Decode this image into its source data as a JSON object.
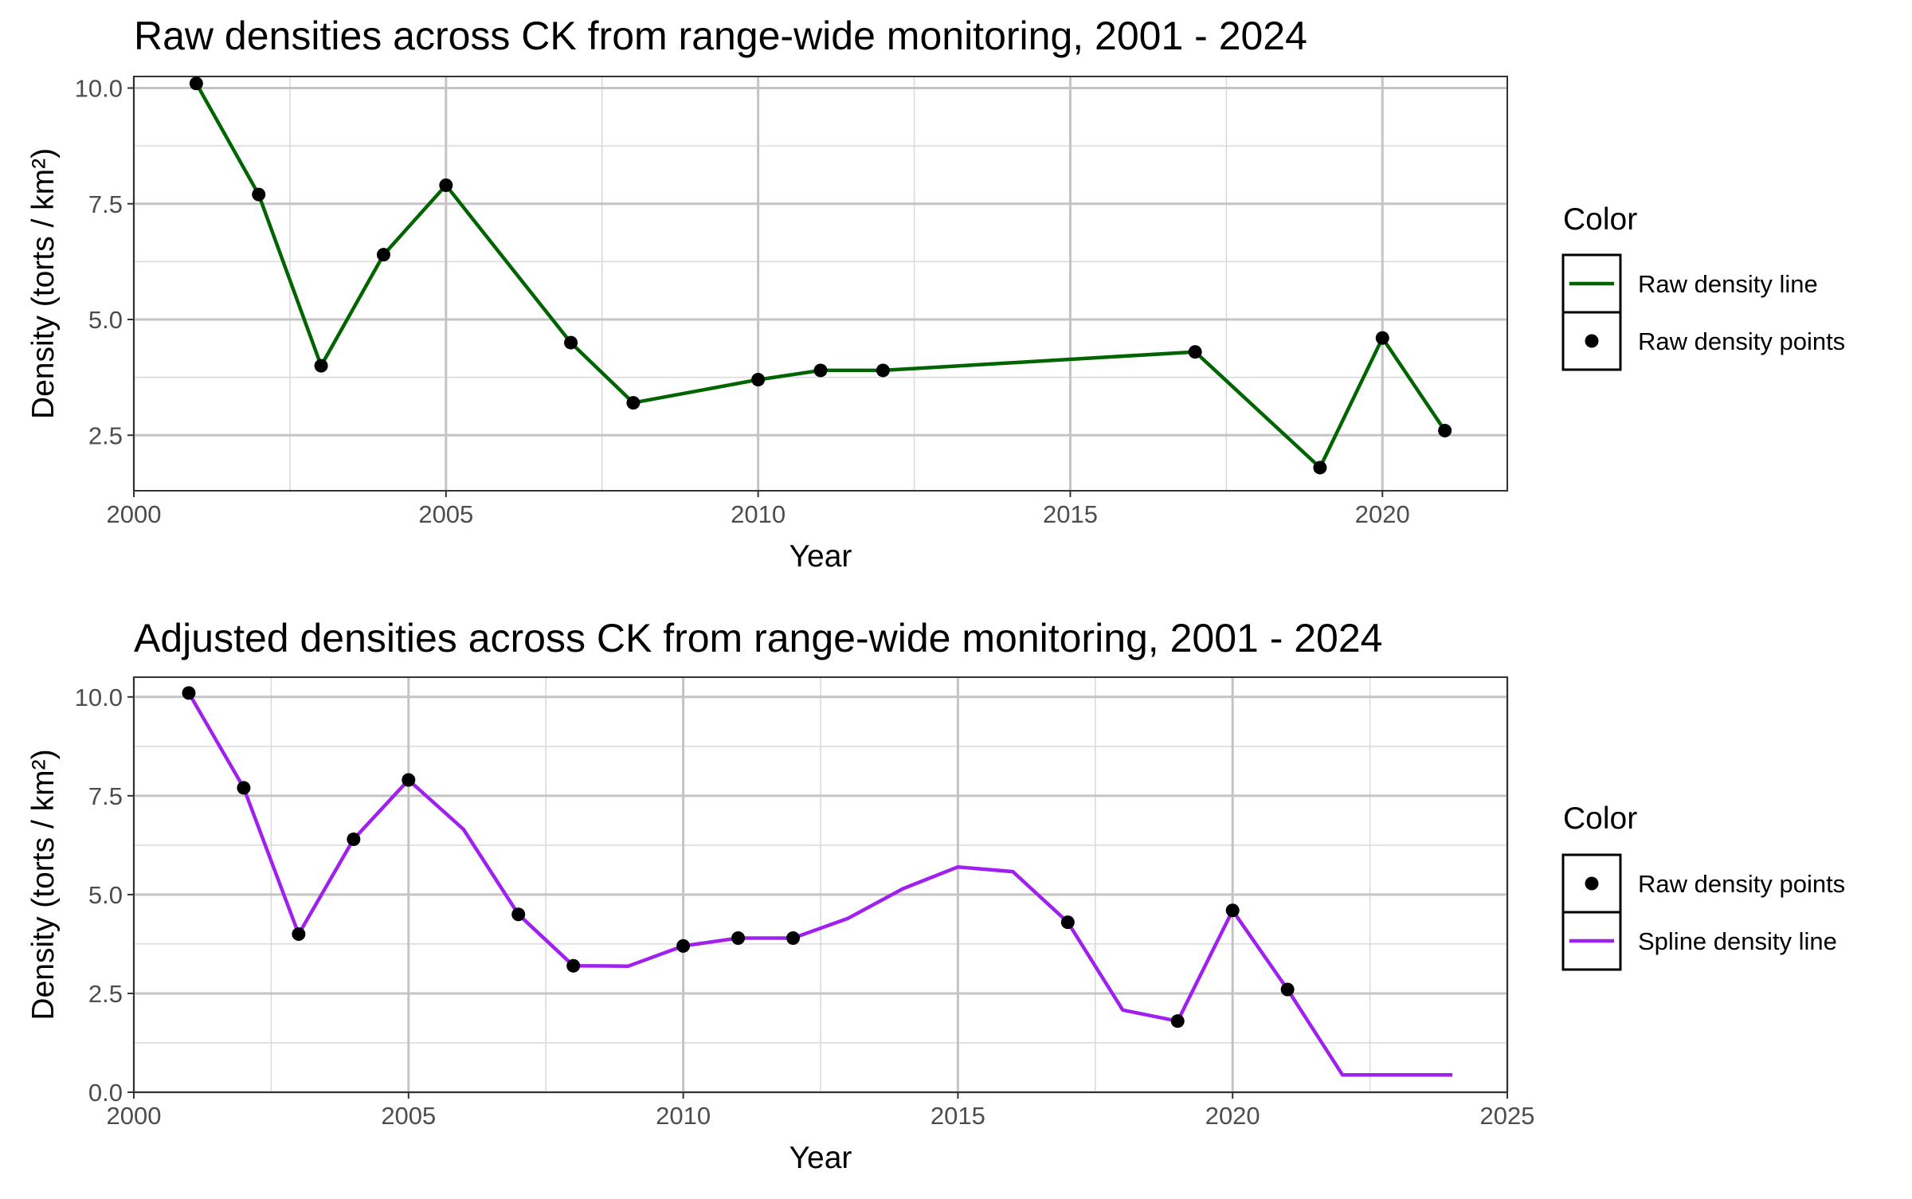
{
  "chart_data": [
    {
      "type": "line",
      "title": "Raw densities across CK from range-wide monitoring, 2001 - 2024",
      "xlabel": "Year",
      "ylabel": "Density (torts / km²)",
      "xlim": [
        2000,
        2022
      ],
      "ylim": [
        1.3,
        10.25
      ],
      "xticks": [
        2000,
        2005,
        2010,
        2015,
        2020
      ],
      "xtick_labels": [
        "2000",
        "2005",
        "2010",
        "2015",
        "2020"
      ],
      "yticks": [
        2.5,
        5.0,
        7.5,
        10.0
      ],
      "ytick_labels": [
        "2.5",
        "5.0",
        "7.5",
        "10.0"
      ],
      "grid": true,
      "legend": {
        "title": "Color",
        "position": "right",
        "entries": [
          {
            "label": "Raw density line",
            "kind": "line",
            "color": "#006400"
          },
          {
            "label": "Raw density points",
            "kind": "point",
            "color": "#000000"
          }
        ]
      },
      "series": [
        {
          "name": "Raw density line",
          "kind": "line",
          "color": "#006400",
          "x": [
            2001,
            2002,
            2003,
            2004,
            2005,
            2007,
            2008,
            2010,
            2011,
            2012,
            2017,
            2019,
            2020,
            2021
          ],
          "y": [
            10.1,
            7.7,
            4.0,
            6.4,
            7.9,
            4.5,
            3.2,
            3.7,
            3.9,
            3.9,
            4.3,
            1.8,
            4.6,
            2.6
          ]
        },
        {
          "name": "Raw density points",
          "kind": "points",
          "color": "#000000",
          "x": [
            2001,
            2002,
            2003,
            2004,
            2005,
            2007,
            2008,
            2010,
            2011,
            2012,
            2017,
            2019,
            2020,
            2021
          ],
          "y": [
            10.1,
            7.7,
            4.0,
            6.4,
            7.9,
            4.5,
            3.2,
            3.7,
            3.9,
            3.9,
            4.3,
            1.8,
            4.6,
            2.6
          ]
        }
      ]
    },
    {
      "type": "line",
      "title": "Adjusted densities across CK from range-wide monitoring, 2001 - 2024",
      "xlabel": "Year",
      "ylabel": "Density (torts / km²)",
      "xlim": [
        2000,
        2025
      ],
      "ylim": [
        0,
        10.5
      ],
      "xticks": [
        2000,
        2005,
        2010,
        2015,
        2020,
        2025
      ],
      "xtick_labels": [
        "2000",
        "2005",
        "2010",
        "2015",
        "2020",
        "2025"
      ],
      "yticks": [
        0,
        2.5,
        5.0,
        7.5,
        10.0
      ],
      "ytick_labels": [
        "0.0",
        "2.5",
        "5.0",
        "7.5",
        "10.0"
      ],
      "grid": true,
      "legend": {
        "title": "Color",
        "position": "right",
        "entries": [
          {
            "label": "Raw density points",
            "kind": "point",
            "color": "#000000"
          },
          {
            "label": "Spline density line",
            "kind": "line",
            "color": "#A020F0"
          }
        ]
      },
      "series": [
        {
          "name": "Spline density line",
          "kind": "line",
          "color": "#A020F0",
          "x": [
            2001,
            2002,
            2003,
            2004,
            2005,
            2006,
            2007,
            2008,
            2009,
            2010,
            2011,
            2012,
            2013,
            2014,
            2015,
            2016,
            2017,
            2018,
            2019,
            2020,
            2021,
            2022,
            2023,
            2024
          ],
          "y": [
            10.1,
            7.7,
            4.0,
            6.4,
            7.9,
            6.65,
            4.5,
            3.2,
            3.19,
            3.7,
            3.9,
            3.9,
            4.4,
            5.15,
            5.7,
            5.58,
            4.3,
            2.08,
            1.8,
            4.6,
            2.6,
            0.44,
            0.44,
            0.44
          ]
        },
        {
          "name": "Raw density points",
          "kind": "points",
          "color": "#000000",
          "x": [
            2001,
            2002,
            2003,
            2004,
            2005,
            2007,
            2008,
            2010,
            2011,
            2012,
            2017,
            2019,
            2020,
            2021
          ],
          "y": [
            10.1,
            7.7,
            4.0,
            6.4,
            7.9,
            4.5,
            3.2,
            3.7,
            3.9,
            3.9,
            4.3,
            1.8,
            4.6,
            2.6
          ]
        }
      ]
    }
  ]
}
